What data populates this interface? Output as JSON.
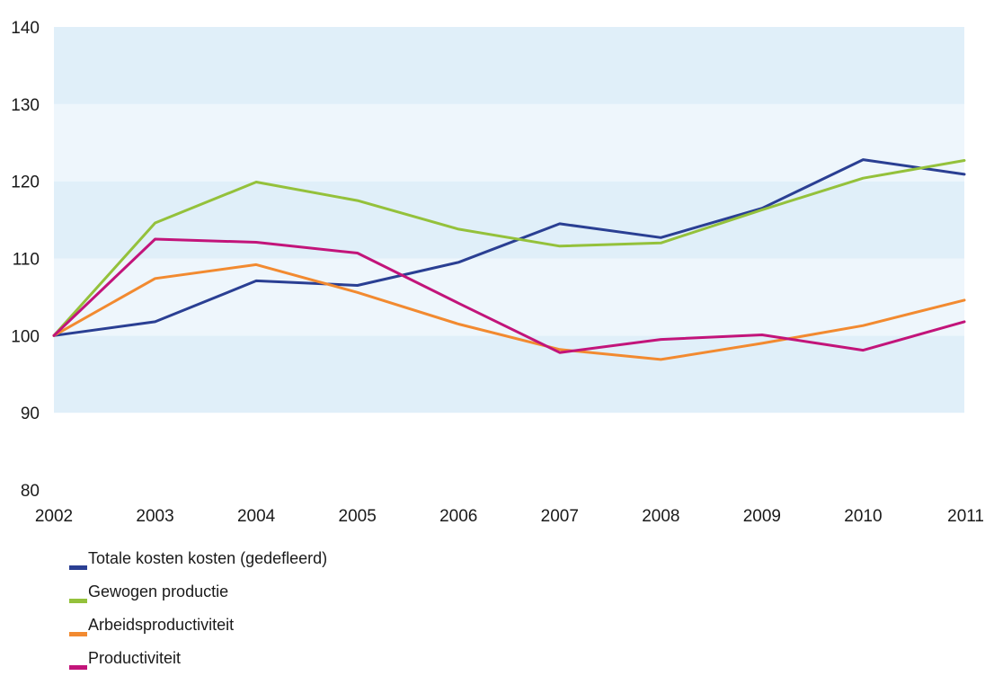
{
  "chart_data": {
    "type": "line",
    "x": [
      "2002",
      "2003",
      "2004",
      "2005",
      "2006",
      "2007",
      "2008",
      "2009",
      "2010",
      "2011"
    ],
    "ylim": [
      80,
      140
    ],
    "yticks": [
      80,
      90,
      100,
      110,
      120,
      130,
      140
    ],
    "grid": "alternating horizontal bands",
    "legend_position": "bottom-left",
    "band_colors": [
      "#ffffff",
      "#e0eff9",
      "#eef6fc"
    ],
    "series": [
      {
        "name": "Totale kosten kosten (gedefleerd)",
        "color": "#2a3f93",
        "values": [
          100,
          101.8,
          107.1,
          106.5,
          109.5,
          114.5,
          112.7,
          116.5,
          122.8,
          120.9
        ]
      },
      {
        "name": "Gewogen productie",
        "color": "#94c13b",
        "values": [
          100,
          114.6,
          119.9,
          117.5,
          113.8,
          111.6,
          112.0,
          116.3,
          120.4,
          122.7
        ]
      },
      {
        "name": "Arbeidsproductiviteit",
        "color": "#f28a30",
        "values": [
          100,
          107.4,
          109.2,
          105.6,
          101.5,
          98.2,
          96.9,
          99.0,
          101.3,
          104.6
        ]
      },
      {
        "name": "Productiviteit",
        "color": "#c2147a",
        "values": [
          100,
          112.5,
          112.1,
          110.7,
          104.2,
          97.8,
          99.5,
          100.1,
          98.1,
          101.8
        ]
      }
    ]
  }
}
